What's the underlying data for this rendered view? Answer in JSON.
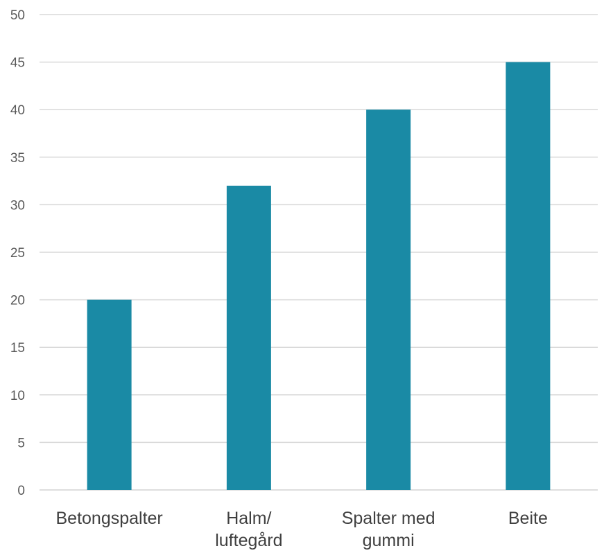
{
  "chart_data": {
    "type": "bar",
    "categories": [
      [
        "Betongspalter"
      ],
      [
        "Halm/",
        "luftegård"
      ],
      [
        "Spalter med",
        "gummi"
      ],
      [
        "Beite"
      ]
    ],
    "values": [
      20,
      32,
      40,
      45
    ],
    "yticks": [
      "0",
      "5",
      "10",
      "15",
      "20",
      "25",
      "30",
      "35",
      "40",
      "45",
      "50"
    ],
    "ylim": [
      0,
      50
    ],
    "grid": true,
    "bar_color": "#1a8aa5",
    "title": "",
    "xlabel": "",
    "ylabel": ""
  }
}
